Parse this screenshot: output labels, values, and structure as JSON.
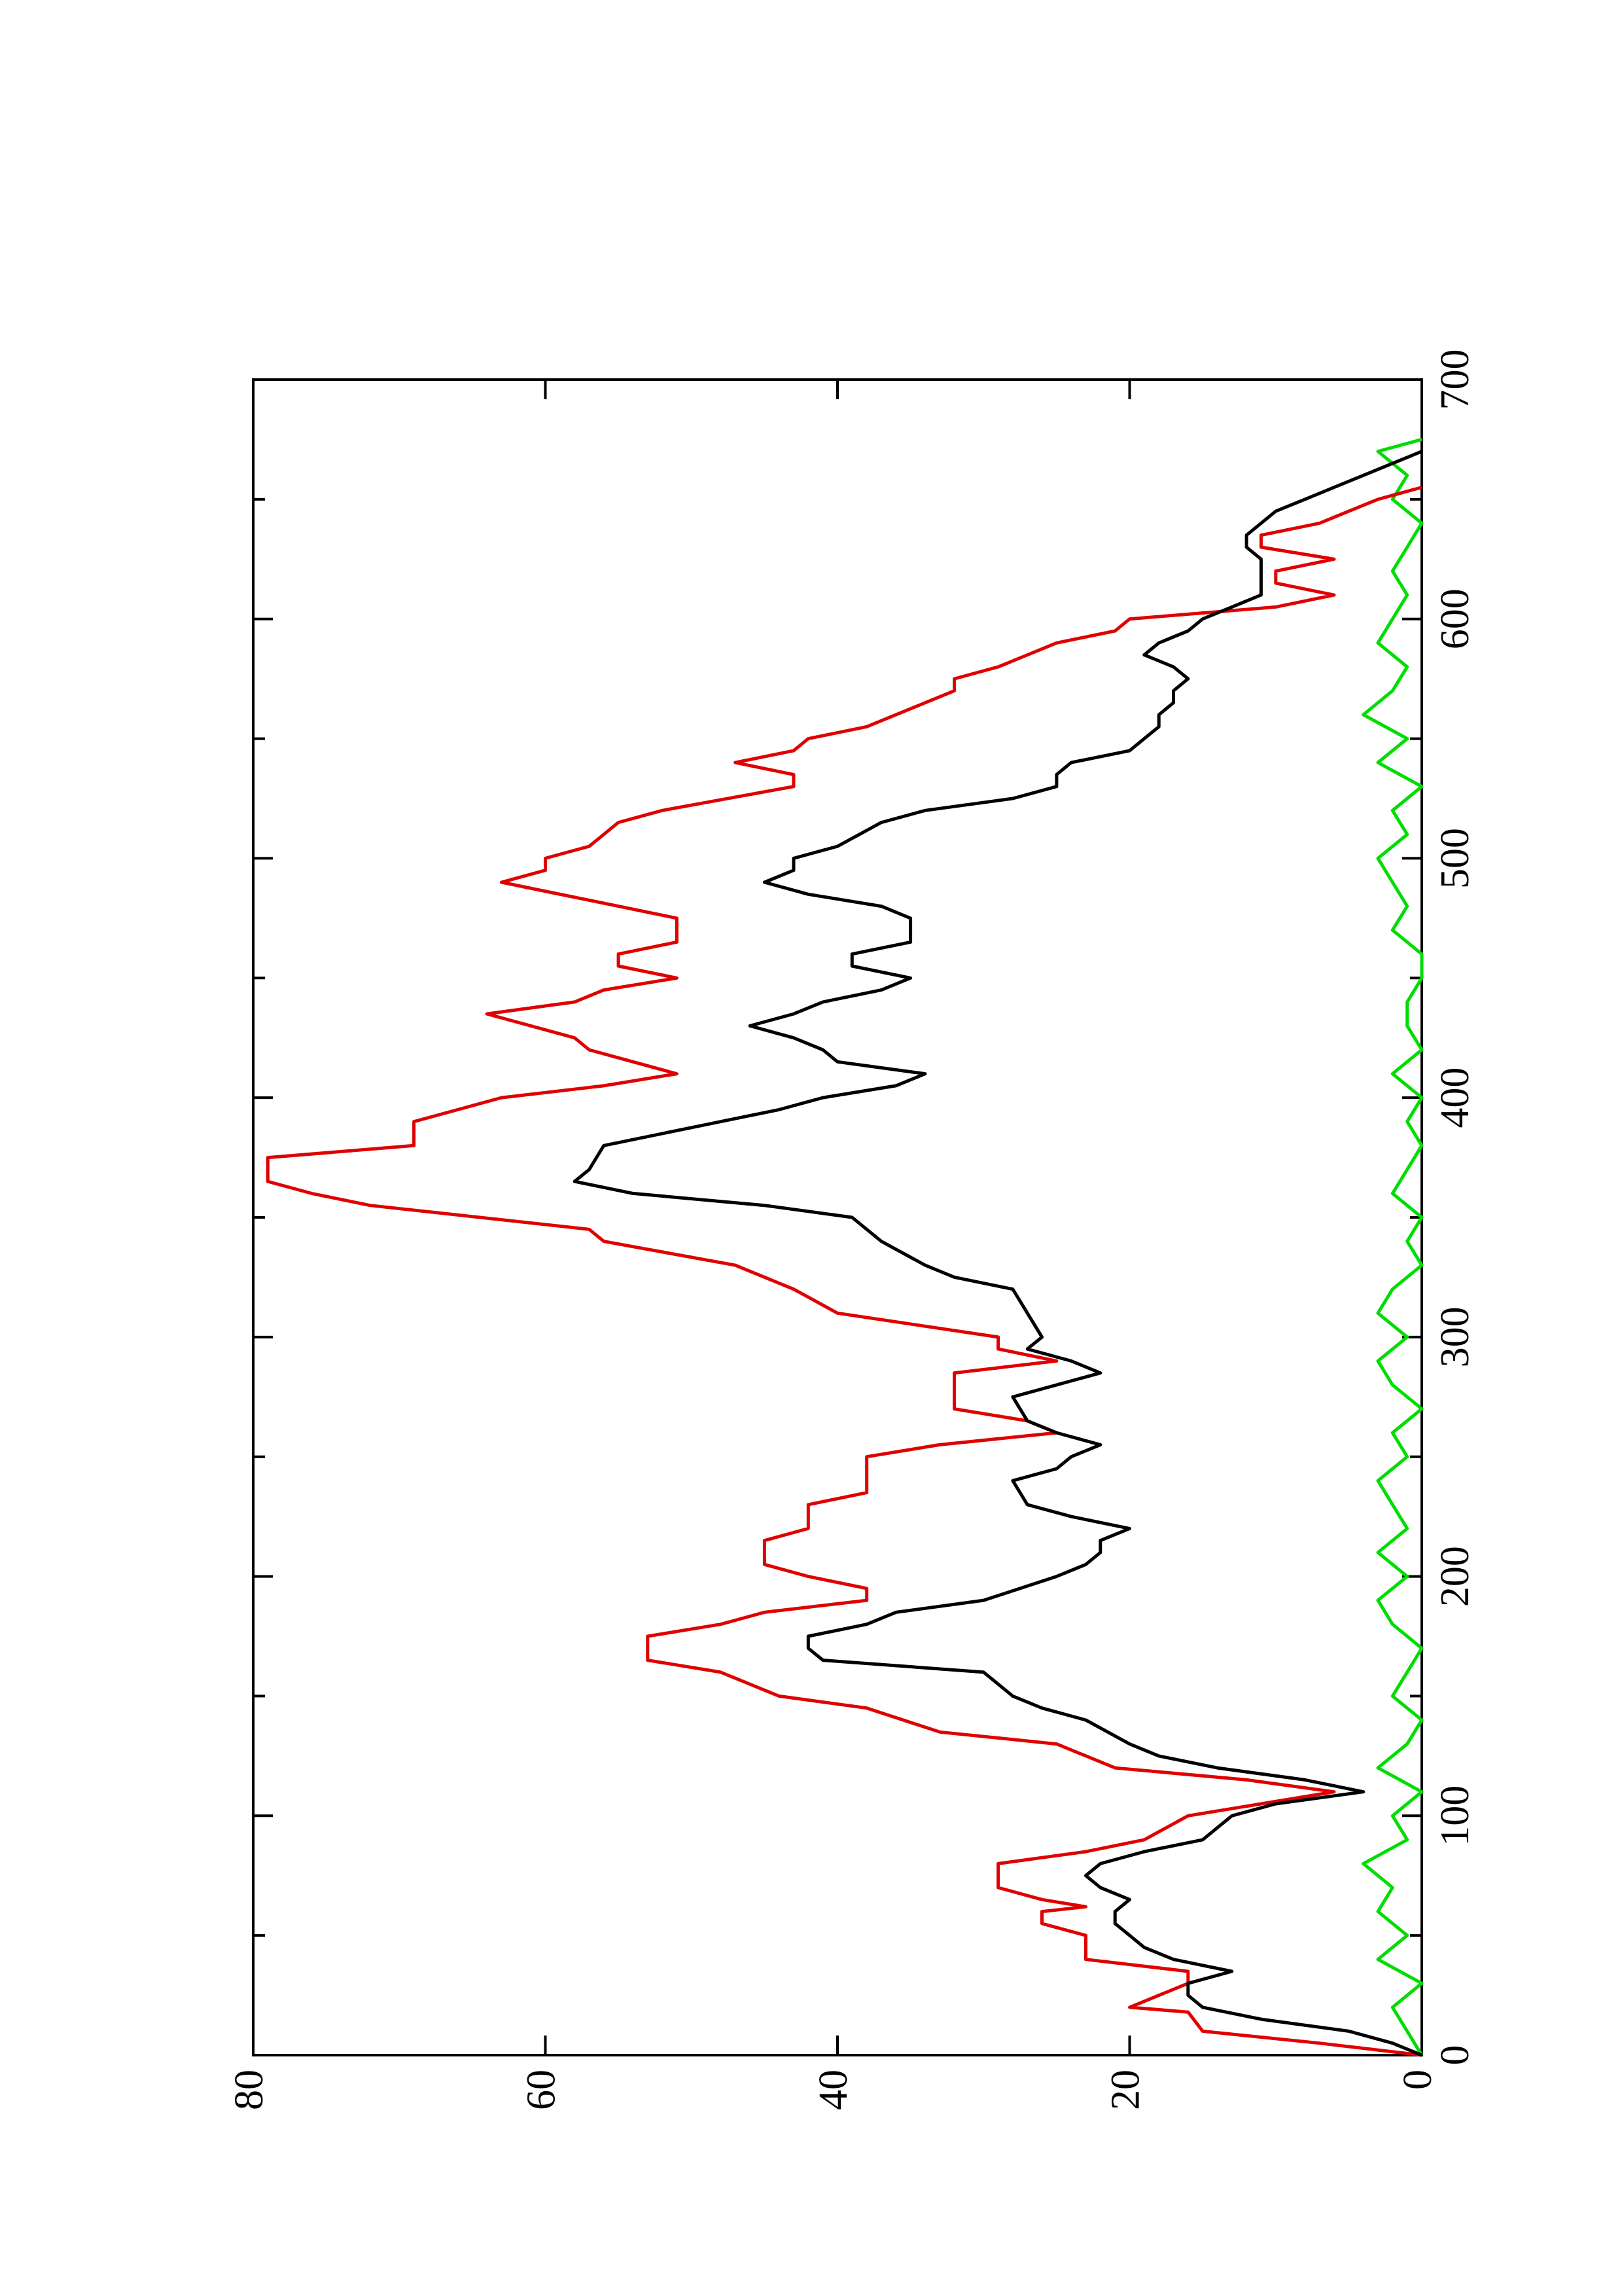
{
  "chart_data": {
    "type": "line",
    "xlim": [
      0,
      700
    ],
    "xticks": [
      0,
      100,
      200,
      300,
      400,
      500,
      600,
      700
    ],
    "xminorticks": [
      50,
      150,
      250,
      350,
      450,
      550,
      650
    ],
    "ylim": [
      0,
      80
    ],
    "yticks": [
      0,
      20,
      40,
      60,
      80
    ],
    "series": [
      {
        "color": "#000000",
        "x": [
          0,
          5,
          10,
          15,
          20,
          25,
          30,
          35,
          40,
          45,
          50,
          55,
          60,
          65,
          70,
          75,
          80,
          85,
          90,
          95,
          100,
          105,
          110,
          115,
          120,
          125,
          130,
          140,
          145,
          150,
          160,
          165,
          170,
          175,
          180,
          185,
          190,
          200,
          205,
          210,
          215,
          220,
          225,
          230,
          240,
          245,
          250,
          255,
          260,
          265,
          275,
          285,
          290,
          295,
          300,
          310,
          320,
          325,
          330,
          340,
          350,
          355,
          360,
          365,
          370,
          380,
          390,
          395,
          400,
          405,
          410,
          415,
          420,
          425,
          430,
          435,
          440,
          445,
          450,
          455,
          460,
          465,
          475,
          480,
          485,
          490,
          495,
          500,
          505,
          515,
          520,
          525,
          530,
          535,
          540,
          545,
          550,
          555,
          560,
          565,
          570,
          575,
          580,
          585,
          590,
          595,
          600,
          605,
          610,
          615,
          620,
          625,
          630,
          635,
          640,
          645,
          650,
          655,
          660,
          665,
          670
        ],
        "values": [
          0,
          2,
          5,
          11,
          15,
          16,
          16,
          13,
          17,
          19,
          20,
          21,
          21,
          20,
          22,
          23,
          22,
          19,
          15,
          14,
          13,
          10,
          4,
          8,
          14,
          18,
          20,
          23,
          26,
          28,
          30,
          41,
          42,
          42,
          38,
          36,
          30,
          25,
          23,
          22,
          22,
          20,
          24,
          27,
          28,
          25,
          24,
          22,
          25,
          27,
          28,
          22,
          24,
          27,
          26,
          27,
          28,
          32,
          34,
          37,
          39,
          45,
          54,
          58,
          57,
          56,
          48,
          44,
          41,
          36,
          34,
          40,
          41,
          43,
          46,
          43,
          41,
          37,
          35,
          39,
          39,
          35,
          35,
          37,
          42,
          45,
          43,
          43,
          40,
          37,
          34,
          28,
          25,
          25,
          24,
          20,
          19,
          18,
          18,
          17,
          17,
          16,
          17,
          19,
          18,
          16,
          15,
          13,
          11,
          11,
          11,
          11,
          12,
          12,
          11,
          10,
          8,
          6,
          4,
          2,
          0
        ]
      },
      {
        "color": "#e00000",
        "x": [
          0,
          5,
          10,
          18,
          20,
          30,
          35,
          40,
          50,
          55,
          60,
          62,
          65,
          70,
          80,
          85,
          90,
          100,
          110,
          115,
          120,
          130,
          135,
          145,
          150,
          160,
          165,
          175,
          180,
          185,
          190,
          195,
          200,
          205,
          215,
          220,
          230,
          235,
          250,
          255,
          260,
          265,
          270,
          285,
          290,
          295,
          300,
          310,
          320,
          330,
          340,
          345,
          355,
          360,
          365,
          375,
          380,
          390,
          400,
          405,
          410,
          415,
          420,
          425,
          435,
          440,
          445,
          450,
          455,
          460,
          465,
          475,
          480,
          490,
          495,
          500,
          505,
          515,
          520,
          530,
          535,
          540,
          545,
          550,
          555,
          565,
          570,
          575,
          580,
          590,
          595,
          600,
          605,
          610,
          615,
          620,
          625,
          630,
          635,
          640,
          645,
          650,
          655
        ],
        "values": [
          0,
          7,
          15,
          16,
          20,
          16,
          16,
          23,
          23,
          26,
          26,
          23,
          26,
          29,
          29,
          23,
          19,
          16,
          6,
          12,
          21,
          25,
          33,
          38,
          44,
          48,
          53,
          53,
          48,
          45,
          38,
          38,
          42,
          45,
          45,
          42,
          42,
          38,
          38,
          33,
          25,
          27,
          32,
          32,
          25,
          29,
          29,
          40,
          43,
          47,
          56,
          57,
          72,
          76,
          79,
          79,
          69,
          69,
          63,
          56,
          51,
          54,
          57,
          58,
          64,
          58,
          56,
          51,
          55,
          55,
          51,
          51,
          55,
          63,
          60,
          60,
          57,
          55,
          52,
          43,
          43,
          47,
          43,
          42,
          38,
          34,
          32,
          32,
          29,
          25,
          21,
          20,
          10,
          6,
          10,
          10,
          6,
          11,
          11,
          7,
          5,
          3,
          0
        ]
      },
      {
        "color": "#00dd00",
        "x": [
          0,
          10,
          20,
          30,
          40,
          50,
          60,
          70,
          80,
          90,
          100,
          110,
          120,
          130,
          140,
          150,
          160,
          170,
          180,
          190,
          200,
          210,
          220,
          230,
          240,
          250,
          260,
          270,
          280,
          290,
          300,
          310,
          320,
          330,
          340,
          350,
          360,
          370,
          380,
          390,
          400,
          410,
          420,
          430,
          440,
          450,
          460,
          470,
          480,
          490,
          500,
          510,
          520,
          530,
          540,
          550,
          560,
          570,
          580,
          590,
          600,
          610,
          620,
          630,
          640,
          650,
          660,
          670,
          675
        ],
        "values": [
          0,
          1,
          2,
          0,
          3,
          1,
          3,
          2,
          4,
          1,
          2,
          0,
          3,
          1,
          0,
          2,
          1,
          0,
          2,
          3,
          1,
          3,
          1,
          2,
          3,
          1,
          2,
          0,
          2,
          3,
          1,
          3,
          2,
          0,
          1,
          0,
          2,
          1,
          0,
          1,
          0,
          2,
          0,
          1,
          1,
          0,
          0,
          2,
          1,
          2,
          3,
          1,
          2,
          0,
          3,
          1,
          4,
          2,
          1,
          3,
          2,
          1,
          2,
          1,
          0,
          2,
          1,
          3,
          0
        ]
      }
    ]
  }
}
